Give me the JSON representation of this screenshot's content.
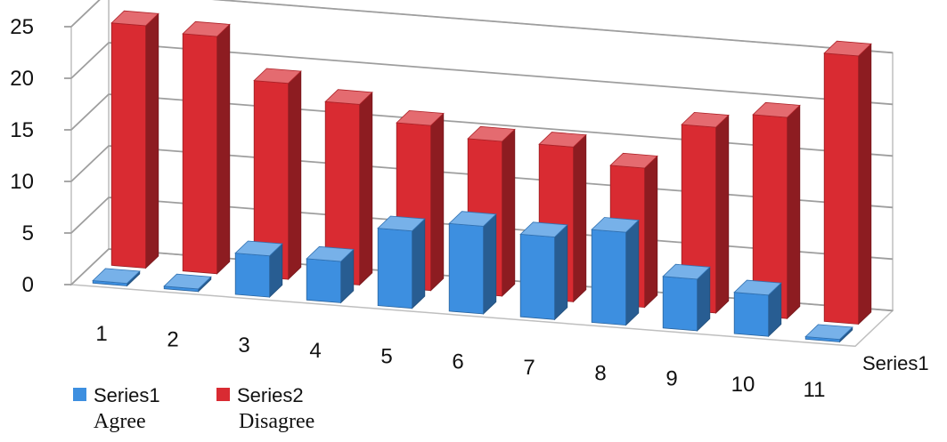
{
  "chart_data": {
    "type": "bar",
    "subtype": "3d-clustered-column",
    "categories": [
      "1",
      "2",
      "3",
      "4",
      "5",
      "6",
      "7",
      "8",
      "9",
      "10",
      "11"
    ],
    "series": [
      {
        "name": "Series1",
        "caption": "Agree",
        "color": "#3d8fe0",
        "values": [
          0.2,
          0.2,
          4,
          4,
          7.5,
          8.5,
          8,
          9,
          5,
          4,
          0.2
        ]
      },
      {
        "name": "Series2",
        "caption": "Disagree",
        "color": "#d92b32",
        "values": [
          23.5,
          23,
          19,
          17.5,
          16,
          15,
          15,
          13.5,
          18,
          19.5,
          26
        ]
      }
    ],
    "y_ticks": [
      "0",
      "5",
      "10",
      "15",
      "20",
      "25"
    ],
    "ylim": [
      0,
      25
    ],
    "depth_label": "Series1",
    "grid": true,
    "legend_position": "bottom-left"
  }
}
